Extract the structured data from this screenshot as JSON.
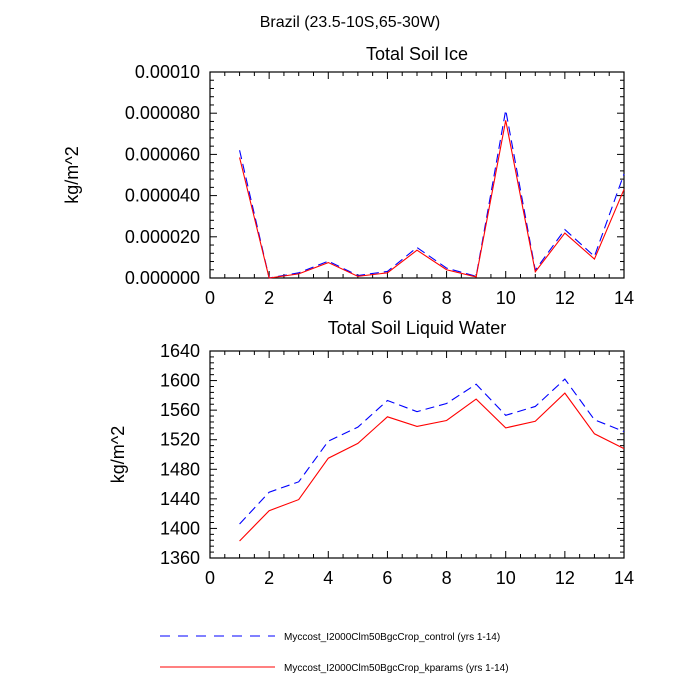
{
  "figure": {
    "suptitle": "Brazil (23.5-10S,65-30W)"
  },
  "legend": [
    {
      "label": "Myccost_I2000Clm50BgcCrop_control (yrs 1-14)",
      "color": "#0000ff",
      "dash": "dashed"
    },
    {
      "label": "Myccost_I2000Clm50BgcCrop_kparams (yrs 1-14)",
      "color": "#ff0000",
      "dash": "solid"
    }
  ],
  "chart_data": [
    {
      "type": "line",
      "title": "Total Soil Ice",
      "xlabel": "",
      "ylabel": "kg/m^2",
      "xlim": [
        0,
        14
      ],
      "ylim": [
        0,
        0.0001
      ],
      "xticks": [
        0,
        2,
        4,
        6,
        8,
        10,
        12,
        14
      ],
      "xtick_labels": [
        "0",
        "2",
        "4",
        "6",
        "8",
        "10",
        "12",
        "14"
      ],
      "yticks": [
        0,
        2e-05,
        4e-05,
        6e-05,
        8e-05,
        0.0001
      ],
      "ytick_labels": [
        "0.000000",
        "0.000020",
        "0.000040",
        "0.000060",
        "0.000080",
        "0.00010"
      ],
      "x": [
        1,
        2,
        3,
        4,
        5,
        6,
        7,
        8,
        9,
        10,
        11,
        12,
        13,
        14
      ],
      "series": [
        {
          "name": "Myccost_I2000Clm50BgcCrop_control (yrs 1-14)",
          "color": "#0000ff",
          "dash": "dashed",
          "values": [
            6.2e-05,
            0.0,
            2.5e-06,
            8.2e-06,
            1.2e-06,
            3.2e-06,
            1.48e-05,
            4.8e-06,
            8e-07,
            8.15e-05,
            3.8e-06,
            2.35e-05,
            1.05e-05,
            5.05e-05
          ]
        },
        {
          "name": "Myccost_I2000Clm50BgcCrop_kparams (yrs 1-14)",
          "color": "#ff0000",
          "dash": "solid",
          "values": [
            5.85e-05,
            0.0,
            2e-06,
            7.5e-06,
            8e-07,
            2.5e-06,
            1.35e-05,
            4e-06,
            5e-07,
            7.65e-05,
            3e-06,
            2.18e-05,
            9.2e-06,
            4.3e-05
          ]
        }
      ]
    },
    {
      "type": "line",
      "title": "Total Soil Liquid Water",
      "xlabel": "",
      "ylabel": "kg/m^2",
      "xlim": [
        0,
        14
      ],
      "ylim": [
        1360,
        1640
      ],
      "xticks": [
        0,
        2,
        4,
        6,
        8,
        10,
        12,
        14
      ],
      "xtick_labels": [
        "0",
        "2",
        "4",
        "6",
        "8",
        "10",
        "12",
        "14"
      ],
      "yticks": [
        1360,
        1400,
        1440,
        1480,
        1520,
        1560,
        1600,
        1640
      ],
      "ytick_labels": [
        "1360",
        "1400",
        "1440",
        "1480",
        "1520",
        "1560",
        "1600",
        "1640"
      ],
      "x": [
        1,
        2,
        3,
        4,
        5,
        6,
        7,
        8,
        9,
        10,
        11,
        12,
        13,
        14
      ],
      "series": [
        {
          "name": "Myccost_I2000Clm50BgcCrop_control (yrs 1-14)",
          "color": "#0000ff",
          "dash": "dashed",
          "values": [
            1406,
            1449,
            1463,
            1518,
            1537,
            1573,
            1558,
            1569,
            1595,
            1553,
            1565,
            1602,
            1547,
            1531
          ]
        },
        {
          "name": "Myccost_I2000Clm50BgcCrop_kparams (yrs 1-14)",
          "color": "#ff0000",
          "dash": "solid",
          "values": [
            1383,
            1424,
            1439,
            1495,
            1515,
            1551,
            1538,
            1546,
            1575,
            1536,
            1545,
            1583,
            1528,
            1508
          ]
        }
      ]
    }
  ]
}
